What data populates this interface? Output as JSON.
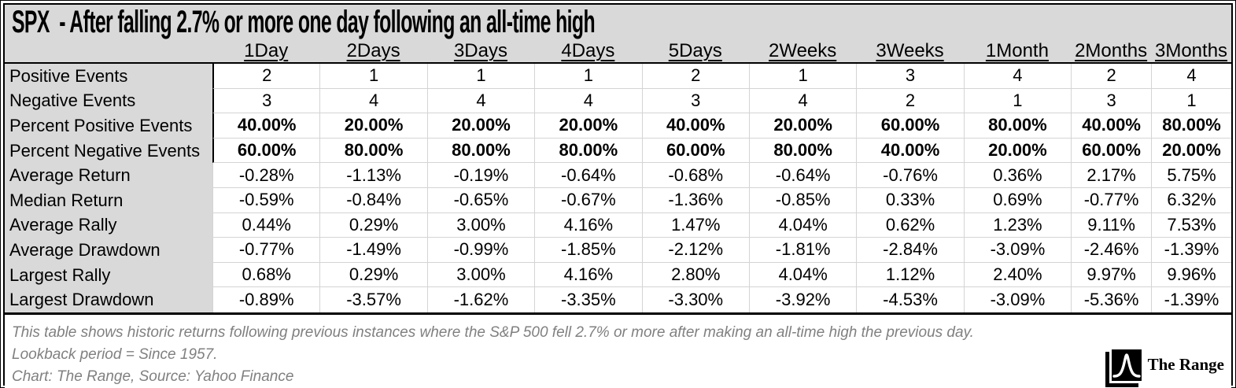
{
  "title": "SPX  - After falling 2.7% or more one day following an all-time high",
  "chart_data": {
    "type": "table",
    "title": "SPX  - After falling 2.7% or more one day following an all-time high",
    "columns": [
      "1Day",
      "2Days",
      "3Days",
      "4Days",
      "5Days",
      "2Weeks",
      "3Weeks",
      "1Month",
      "2Months",
      "3Months"
    ],
    "rows": [
      {
        "label": "Positive Events",
        "bold": false,
        "values": [
          "2",
          "1",
          "1",
          "1",
          "2",
          "1",
          "3",
          "4",
          "2",
          "4"
        ]
      },
      {
        "label": "Negative Events",
        "bold": false,
        "values": [
          "3",
          "4",
          "4",
          "4",
          "3",
          "4",
          "2",
          "1",
          "3",
          "1"
        ]
      },
      {
        "label": "Percent Positive Events",
        "bold": true,
        "values": [
          "40.00%",
          "20.00%",
          "20.00%",
          "20.00%",
          "40.00%",
          "20.00%",
          "60.00%",
          "80.00%",
          "40.00%",
          "80.00%"
        ]
      },
      {
        "label": "Percent Negative Events",
        "bold": true,
        "values": [
          "60.00%",
          "80.00%",
          "80.00%",
          "80.00%",
          "60.00%",
          "80.00%",
          "40.00%",
          "20.00%",
          "60.00%",
          "20.00%"
        ]
      },
      {
        "label": "Average Return",
        "bold": false,
        "values": [
          "-0.28%",
          "-1.13%",
          "-0.19%",
          "-0.64%",
          "-0.68%",
          "-0.64%",
          "-0.76%",
          "0.36%",
          "2.17%",
          "5.75%"
        ]
      },
      {
        "label": "Median Return",
        "bold": false,
        "values": [
          "-0.59%",
          "-0.84%",
          "-0.65%",
          "-0.67%",
          "-1.36%",
          "-0.85%",
          "0.33%",
          "0.69%",
          "-0.77%",
          "6.32%"
        ]
      },
      {
        "label": "Average Rally",
        "bold": false,
        "values": [
          "0.44%",
          "0.29%",
          "3.00%",
          "4.16%",
          "1.47%",
          "4.04%",
          "0.62%",
          "1.23%",
          "9.11%",
          "7.53%"
        ]
      },
      {
        "label": "Average Drawdown",
        "bold": false,
        "values": [
          "-0.77%",
          "-1.49%",
          "-0.99%",
          "-1.85%",
          "-2.12%",
          "-1.81%",
          "-2.84%",
          "-3.09%",
          "-2.46%",
          "-1.39%"
        ]
      },
      {
        "label": "Largest Rally",
        "bold": false,
        "values": [
          "0.68%",
          "0.29%",
          "3.00%",
          "4.16%",
          "2.80%",
          "4.04%",
          "1.12%",
          "2.40%",
          "9.97%",
          "9.96%"
        ]
      },
      {
        "label": "Largest Drawdown",
        "bold": false,
        "values": [
          "-0.89%",
          "-3.57%",
          "-1.62%",
          "-3.35%",
          "-3.30%",
          "-3.92%",
          "-4.53%",
          "-3.09%",
          "-5.36%",
          "-1.39%"
        ]
      }
    ],
    "layout_hints": {
      "grid": true,
      "header_underline": true,
      "bold_rows": [
        2,
        3
      ]
    }
  },
  "footnotes": [
    "This table shows historic returns following previous instances where the S&P 500 fell 2.7% or more after making an all-time high the previous day.",
    "Lookback period = Since 1957.",
    "Chart: The Range, Source: Yahoo Finance"
  ],
  "logo": {
    "text": "The Range",
    "icon": "bell-curve-icon"
  },
  "colors": {
    "header_bg": "#d9d9d9",
    "label_bg": "#d9d9d9",
    "gridline": "#d4d4d4",
    "border": "#000000",
    "footnote_text": "#808080"
  }
}
